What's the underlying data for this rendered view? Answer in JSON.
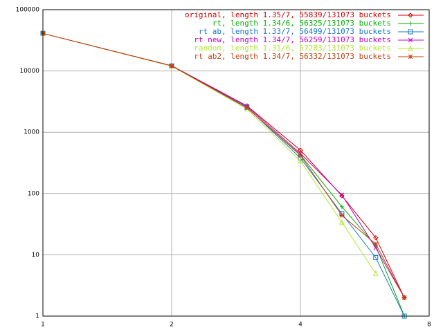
{
  "chart_data": {
    "type": "line",
    "x": [
      1,
      2,
      3,
      4,
      5,
      6,
      7
    ],
    "xlim": [
      1,
      8
    ],
    "xticks": [
      1,
      2,
      4,
      8
    ],
    "xlog": true,
    "ylim": [
      1,
      100000
    ],
    "yticks": [
      1,
      10,
      100,
      1000,
      10000,
      100000
    ],
    "ylog": true,
    "grid": true,
    "legend": "top-right",
    "series": [
      {
        "name": "original, length 1.35/7, 55839/131073 buckets",
        "color": "#d00000",
        "values": [
          41000,
          12200,
          2700,
          510,
          92,
          19,
          2
        ]
      },
      {
        "name": "rt, length 1.34/6, 56325/131073 buckets",
        "color": "#00b000",
        "values": [
          41000,
          12100,
          2500,
          430,
          61,
          14,
          1
        ]
      },
      {
        "name": "rt ab, length 1.33/7, 56499/131073 buckets",
        "color": "#1878c8",
        "values": [
          41000,
          12100,
          2550,
          380,
          47,
          9,
          1
        ]
      },
      {
        "name": "rt new, length 1.34/7, 56259/131073 buckets",
        "color": "#c000c0",
        "values": [
          41000,
          12100,
          2650,
          450,
          95,
          13,
          2
        ]
      },
      {
        "name": "random, length 1.31/6, 57283/131073 buckets",
        "color": "#b0e830",
        "values": [
          41000,
          12000,
          2400,
          340,
          34,
          5,
          null
        ]
      },
      {
        "name": "rt ab2, length 1.34/7, 56332/131073 buckets",
        "color": "#c04010",
        "values": [
          41000,
          12100,
          2500,
          420,
          44,
          15,
          2
        ]
      }
    ]
  }
}
